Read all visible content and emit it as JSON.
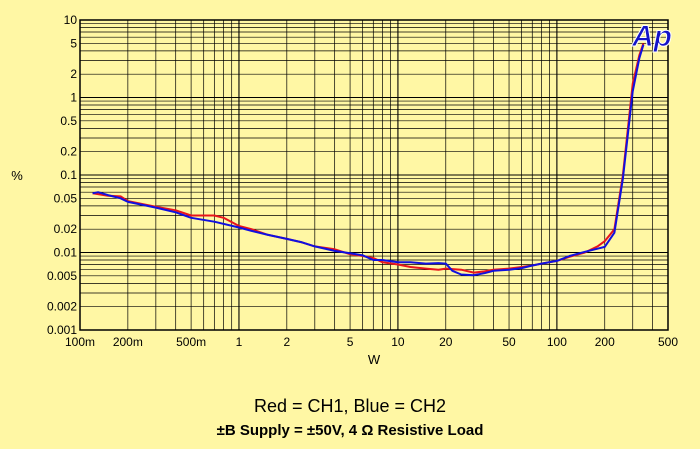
{
  "chart_data": {
    "type": "line",
    "xscale": "log",
    "yscale": "log",
    "xlim": [
      0.1,
      500
    ],
    "ylim": [
      0.001,
      10
    ],
    "grid": true,
    "xlabel": "W",
    "ylabel": "%",
    "x_ticks": [
      {
        "value": 0.1,
        "label": "100m"
      },
      {
        "value": 0.2,
        "label": "200m"
      },
      {
        "value": 0.5,
        "label": "500m"
      },
      {
        "value": 1,
        "label": "1"
      },
      {
        "value": 2,
        "label": "2"
      },
      {
        "value": 5,
        "label": "5"
      },
      {
        "value": 10,
        "label": "10"
      },
      {
        "value": 20,
        "label": "20"
      },
      {
        "value": 50,
        "label": "50"
      },
      {
        "value": 100,
        "label": "100"
      },
      {
        "value": 200,
        "label": "200"
      },
      {
        "value": 500,
        "label": "500"
      }
    ],
    "y_ticks": [
      {
        "value": 10,
        "label": "10"
      },
      {
        "value": 5,
        "label": "5"
      },
      {
        "value": 2,
        "label": "2"
      },
      {
        "value": 1,
        "label": "1"
      },
      {
        "value": 0.5,
        "label": "0.5"
      },
      {
        "value": 0.2,
        "label": "0.2"
      },
      {
        "value": 0.1,
        "label": "0.1"
      },
      {
        "value": 0.05,
        "label": "0.05"
      },
      {
        "value": 0.02,
        "label": "0.02"
      },
      {
        "value": 0.01,
        "label": "0.01"
      },
      {
        "value": 0.005,
        "label": "0.005"
      },
      {
        "value": 0.002,
        "label": "0.002"
      },
      {
        "value": 0.001,
        "label": "0.001"
      }
    ],
    "logo_text": "Ap",
    "legend_caption": "Red = CH1,  Blue  = CH2",
    "supply_caption": "±B Supply = ±50V,  4 Ω Resistive Load",
    "series": [
      {
        "color": "#E8141C",
        "x": [
          0.12,
          0.15,
          0.18,
          0.2,
          0.25,
          0.3,
          0.4,
          0.5,
          0.6,
          0.7,
          0.8,
          1,
          1.2,
          1.5,
          2,
          2.5,
          3,
          4,
          5,
          6,
          7,
          8,
          10,
          12,
          15,
          18,
          20,
          25,
          30,
          35,
          40,
          50,
          60,
          70,
          80,
          100,
          120,
          150,
          180,
          200,
          230,
          260,
          300,
          330,
          350
        ],
        "y": [
          0.058,
          0.054,
          0.053,
          0.046,
          0.042,
          0.039,
          0.035,
          0.03,
          0.03,
          0.03,
          0.028,
          0.022,
          0.02,
          0.017,
          0.015,
          0.0135,
          0.012,
          0.011,
          0.0095,
          0.009,
          0.0085,
          0.0075,
          0.007,
          0.0065,
          0.0062,
          0.006,
          0.0062,
          0.006,
          0.0055,
          0.0057,
          0.006,
          0.0062,
          0.0065,
          0.0068,
          0.0072,
          0.0078,
          0.0088,
          0.01,
          0.012,
          0.014,
          0.02,
          0.1,
          1.5,
          3.5,
          5.0
        ]
      },
      {
        "color": "#1010E0",
        "x": [
          0.12,
          0.13,
          0.15,
          0.18,
          0.2,
          0.25,
          0.3,
          0.4,
          0.5,
          0.7,
          1,
          1.2,
          1.5,
          2,
          2.5,
          3,
          4,
          5,
          6,
          7,
          8,
          10,
          12,
          15,
          18,
          20,
          22,
          25,
          30,
          35,
          40,
          50,
          60,
          70,
          80,
          100,
          120,
          150,
          180,
          200,
          230,
          260,
          300,
          330,
          350
        ],
        "y": [
          0.058,
          0.06,
          0.055,
          0.05,
          0.045,
          0.041,
          0.038,
          0.033,
          0.028,
          0.025,
          0.021,
          0.019,
          0.017,
          0.015,
          0.0135,
          0.012,
          0.0105,
          0.0098,
          0.0092,
          0.008,
          0.008,
          0.0075,
          0.0075,
          0.0072,
          0.0073,
          0.0072,
          0.0058,
          0.0052,
          0.0051,
          0.0054,
          0.0058,
          0.006,
          0.0063,
          0.0068,
          0.0072,
          0.0078,
          0.009,
          0.0102,
          0.0112,
          0.0118,
          0.018,
          0.09,
          1.2,
          3.2,
          4.8
        ]
      }
    ]
  }
}
